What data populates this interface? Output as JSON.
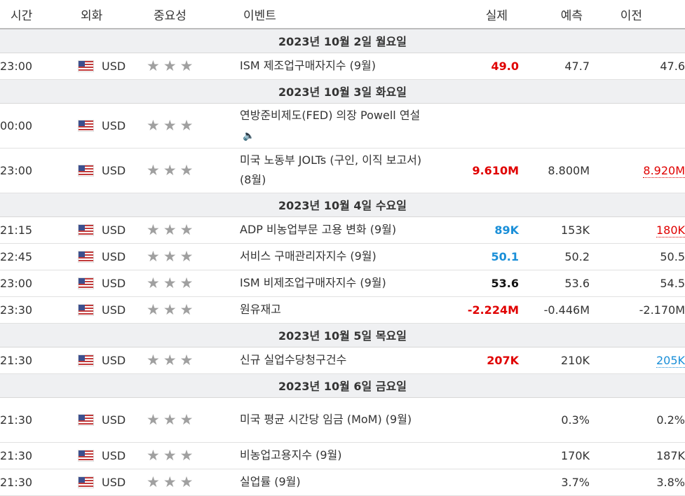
{
  "headers": {
    "time": "시간",
    "currency": "외화",
    "importance": "중요성",
    "event": "이벤트",
    "actual": "실제",
    "forecast": "예측",
    "previous": "이전"
  },
  "colors": {
    "actual_worse": "#e00000",
    "actual_better": "#1a8fd8",
    "row_day_bg": "#eff0f2"
  },
  "icons": {
    "flag": "us-flag-icon",
    "importance": "star-icon",
    "speech": "speaker-icon"
  },
  "days": [
    {
      "label": "2023년 10월 2일 월요일",
      "events": [
        {
          "time": "23:00",
          "currency": "USD",
          "event": "ISM 제조업구매자지수 (9월)",
          "actual": "49.0",
          "actual_color": "red",
          "forecast": "47.7",
          "previous": "47.6",
          "previous_style": "",
          "h": 38
        }
      ]
    },
    {
      "label": "2023년 10월 3일 화요일",
      "events": [
        {
          "time": "00:00",
          "currency": "USD",
          "event": "연방준비제도(FED) 의장 Powell 연설",
          "speech": true,
          "actual": "",
          "actual_color": "",
          "forecast": "",
          "previous": "",
          "previous_style": "",
          "h": 64
        },
        {
          "time": "23:00",
          "currency": "USD",
          "event": "미국 노동부 JOLTs (구인, 이직 보고서) (8월)",
          "actual": "9.610M",
          "actual_color": "red",
          "forecast": "8.800M",
          "previous": "8.920M",
          "previous_style": "prev-red",
          "h": 64
        }
      ]
    },
    {
      "label": "2023년 10월 4일 수요일",
      "events": [
        {
          "time": "21:15",
          "currency": "USD",
          "event": "ADP 비농업부문 고용 변화 (9월)",
          "actual": "89K",
          "actual_color": "blue",
          "forecast": "153K",
          "previous": "180K",
          "previous_style": "prev-red",
          "h": 38
        },
        {
          "time": "22:45",
          "currency": "USD",
          "event": "서비스 구매관리자지수 (9월)",
          "actual": "50.1",
          "actual_color": "blue",
          "forecast": "50.2",
          "previous": "50.5",
          "previous_style": "",
          "h": 38
        },
        {
          "time": "23:00",
          "currency": "USD",
          "event": "ISM 비제조업구매자지수 (9월)",
          "actual": "53.6",
          "actual_color": "black",
          "forecast": "53.6",
          "previous": "54.5",
          "previous_style": "",
          "h": 38
        },
        {
          "time": "23:30",
          "currency": "USD",
          "event": "원유재고",
          "actual": "-2.224M",
          "actual_color": "red",
          "forecast": "-0.446M",
          "previous": "-2.170M",
          "previous_style": "",
          "h": 38
        }
      ]
    },
    {
      "label": "2023년 10월 5일 목요일",
      "events": [
        {
          "time": "21:30",
          "currency": "USD",
          "event": "신규 실업수당청구건수",
          "actual": "207K",
          "actual_color": "red",
          "forecast": "210K",
          "previous": "205K",
          "previous_style": "prev-blue",
          "h": 38
        }
      ]
    },
    {
      "label": "2023년 10월 6일 금요일",
      "events": [
        {
          "time": "21:30",
          "currency": "USD",
          "event": "미국 평균 시간당 임금 (MoM) (9월)",
          "actual": "",
          "actual_color": "",
          "forecast": "0.3%",
          "previous": "0.2%",
          "previous_style": "",
          "h": 64
        },
        {
          "time": "21:30",
          "currency": "USD",
          "event": "비농업고용지수 (9월)",
          "actual": "",
          "actual_color": "",
          "forecast": "170K",
          "previous": "187K",
          "previous_style": "",
          "h": 38
        },
        {
          "time": "21:30",
          "currency": "USD",
          "event": "실업률 (9월)",
          "actual": "",
          "actual_color": "",
          "forecast": "3.7%",
          "previous": "3.8%",
          "previous_style": "",
          "h": 38
        }
      ]
    }
  ]
}
